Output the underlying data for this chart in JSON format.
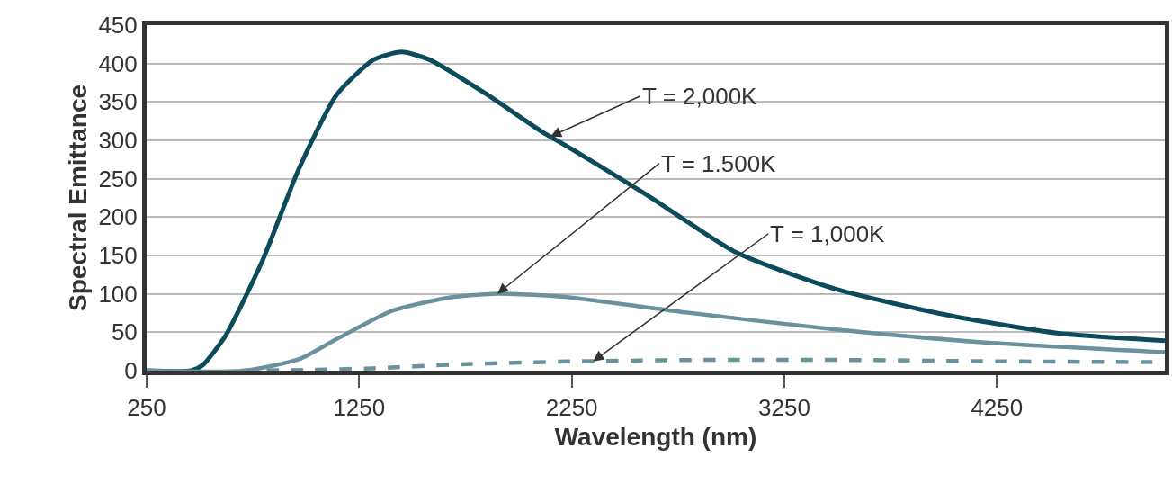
{
  "chart_data": {
    "type": "line",
    "xlabel": "Wavelength (nm)",
    "ylabel": "Spectral Emittance",
    "xlim": [
      250,
      5040
    ],
    "xticks": [
      250,
      1250,
      2250,
      3250,
      4250
    ],
    "ylim": [
      0,
      450
    ],
    "yticks": [
      0,
      50,
      100,
      150,
      200,
      250,
      300,
      350,
      400,
      450
    ],
    "grid": "y",
    "marker": "none",
    "series": [
      {
        "color": "#0b4b5c",
        "line_style": "solid",
        "x": [
          250,
          460,
          513,
          618,
          793,
          968,
          1143,
          1318,
          1450,
          1581,
          1844,
          2106,
          2254,
          2603,
          3023,
          3481,
          4006,
          4532,
          5040
        ],
        "values": [
          0,
          0,
          7,
          44,
          142,
          264,
          359,
          405,
          415,
          405,
          361,
          312,
          288,
          229,
          154,
          107,
          73,
          49,
          39
        ]
      },
      {
        "color": "#6a929c",
        "line_style": "solid",
        "x": [
          250,
          710,
          968,
          1143,
          1406,
          1668,
          1878,
          2106,
          2254,
          2779,
          3481,
          4179,
          5040
        ],
        "values": [
          0,
          0,
          15,
          41,
          78,
          95,
          100,
          98,
          95,
          76,
          54,
          37,
          24
        ]
      },
      {
        "color": "#6a929c",
        "line_style": "dashed",
        "x": [
          700,
          1000,
          1318,
          1700,
          2250,
          2900,
          3500,
          4300,
          5040
        ],
        "values": [
          0,
          1,
          3,
          8,
          12,
          14,
          14,
          12,
          11
        ]
      }
    ],
    "annotations": [
      {
        "text": "T = 2,000K",
        "x": 2150,
        "y": 305
      },
      {
        "text": "T = 1.500K",
        "x": 1900,
        "y": 100
      },
      {
        "text": "T = 1,000K",
        "x": 2350,
        "y": 12
      }
    ]
  }
}
